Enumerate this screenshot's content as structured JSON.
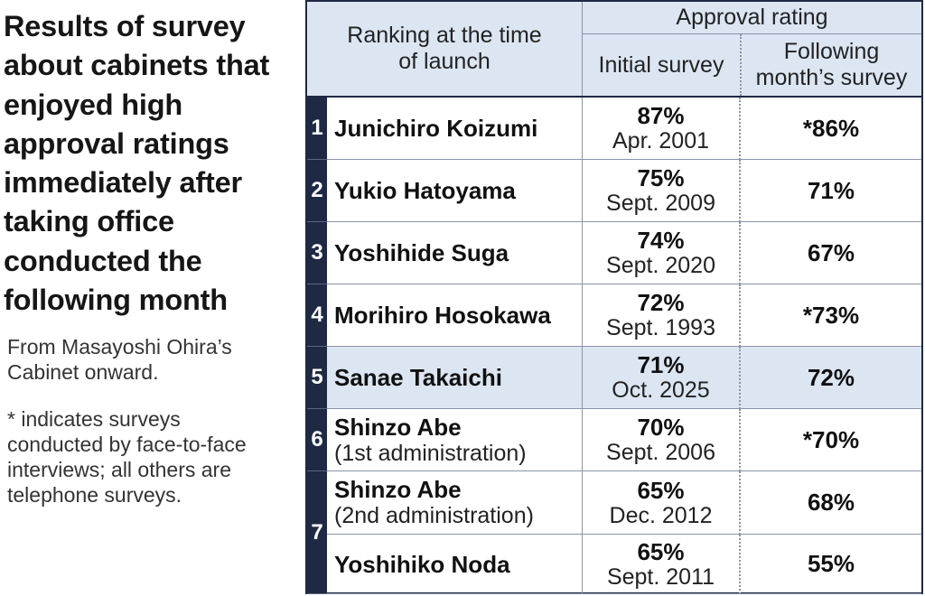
{
  "title": "Results of survey about cabinets that enjoyed high approval ratings immediately after taking office conducted the following month",
  "source_note": "From Masayoshi Ohira’s Cabinet onward.",
  "footnote": " * indicates surveys conducted by face-to-face interviews; all others are telephone surveys.",
  "headers": {
    "ranking": "Ranking at the time of launch",
    "approval": "Approval rating",
    "initial": "Initial survey",
    "following": "Following month’s survey"
  },
  "colors": {
    "header_bg": "#dce6f3",
    "rank_bg": "#1e2a44",
    "highlight_bg": "#dce6f3"
  },
  "chart_data": {
    "type": "table",
    "title": "Results of survey about cabinets that enjoyed high approval ratings immediately after taking office conducted the following month",
    "columns": [
      "Ranking at the time of launch",
      "Initial survey",
      "Following month’s survey"
    ],
    "rows": [
      {
        "rank": "1",
        "name": "Junichiro Koizumi",
        "sub": "",
        "initial": "87%",
        "date": "Apr. 2001",
        "following": "*86%",
        "highlight": false
      },
      {
        "rank": "2",
        "name": "Yukio Hatoyama",
        "sub": "",
        "initial": "75%",
        "date": "Sept. 2009",
        "following": "71%",
        "highlight": false
      },
      {
        "rank": "3",
        "name": "Yoshihide Suga",
        "sub": "",
        "initial": "74%",
        "date": "Sept. 2020",
        "following": "67%",
        "highlight": false
      },
      {
        "rank": "4",
        "name": "Morihiro Hosokawa",
        "sub": "",
        "initial": "72%",
        "date": "Sept. 1993",
        "following": "*73%",
        "highlight": false
      },
      {
        "rank": "5",
        "name": "Sanae Takaichi",
        "sub": "",
        "initial": "71%",
        "date": "Oct. 2025",
        "following": "72%",
        "highlight": true
      },
      {
        "rank": "6",
        "name": "Shinzo Abe",
        "sub": "(1st administration)",
        "initial": "70%",
        "date": "Sept. 2006",
        "following": "*70%",
        "highlight": false
      },
      {
        "rank": "7",
        "name": "Shinzo Abe",
        "sub": "(2nd administration)",
        "initial": "65%",
        "date": "Dec. 2012",
        "following": "68%",
        "highlight": false
      },
      {
        "rank": "7",
        "name": "Yoshihiko Noda",
        "sub": "",
        "initial": "65%",
        "date": "Sept. 2011",
        "following": "55%",
        "highlight": false
      }
    ]
  }
}
